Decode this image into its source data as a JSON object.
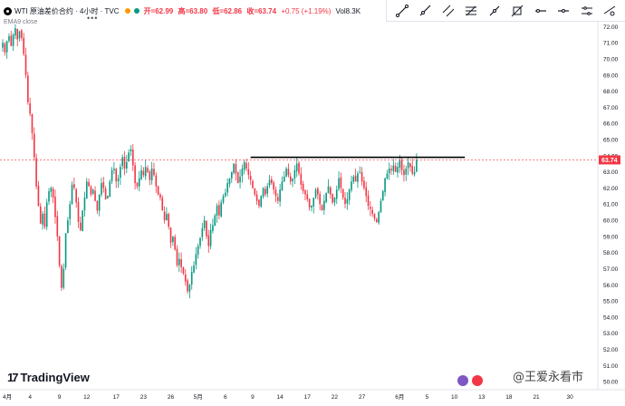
{
  "header": {
    "title": "WTI 原油差价合约 · 4小时 · TVC",
    "ema_label": "EMA9 close",
    "ohlc": {
      "open_label": "开=",
      "open": "62.99",
      "high_label": "高=",
      "high": "63.80",
      "low_label": "低=",
      "low": "62.86",
      "close_label": "收=",
      "close": "63.74",
      "change": "+0.75 (+1.19%)"
    },
    "volume_label": "Vol",
    "volume": "8.3K",
    "status_colors": [
      "#ff9800",
      "#089981"
    ]
  },
  "toolbar": {
    "tools": [
      "trend-line-tool",
      "ray-tool",
      "parallel-channel-tool",
      "fib-tool",
      "line-tool",
      "extended-line-tool",
      "horizontal-ray-tool",
      "horizontal-line-tool",
      "price-range-tool",
      "more-tools"
    ]
  },
  "branding": {
    "tradingview": "TradingView",
    "watermark": "@王爱永看市"
  },
  "colors": {
    "up": "#089981",
    "down": "#f23645",
    "resistance": "#000000",
    "price_tag": "#f23645"
  },
  "chart_data": {
    "type": "candlestick",
    "y_ticks": [
      "72.00",
      "71.00",
      "70.00",
      "69.00",
      "68.00",
      "67.00",
      "66.00",
      "65.00",
      "64.00",
      "63.00",
      "62.00",
      "61.00",
      "60.00",
      "59.00",
      "58.00",
      "57.00",
      "56.00",
      "55.00",
      "54.00",
      "53.00",
      "52.00",
      "51.00",
      "50.00"
    ],
    "ylim": [
      49.5,
      72.3
    ],
    "x_ticks": [
      {
        "label": "4月",
        "pos": 0
      },
      {
        "label": "4",
        "pos": 13
      },
      {
        "label": "9",
        "pos": 27
      },
      {
        "label": "12",
        "pos": 40
      },
      {
        "label": "17",
        "pos": 54
      },
      {
        "label": "23",
        "pos": 67
      },
      {
        "label": "26",
        "pos": 80
      },
      {
        "label": "5月",
        "pos": 93
      },
      {
        "label": "6",
        "pos": 106
      },
      {
        "label": "9",
        "pos": 119
      },
      {
        "label": "14",
        "pos": 132
      },
      {
        "label": "17",
        "pos": 145
      },
      {
        "label": "22",
        "pos": 158
      },
      {
        "label": "27",
        "pos": 171
      },
      {
        "label": "6月",
        "pos": 189
      },
      {
        "label": "5",
        "pos": 202
      },
      {
        "label": "10",
        "pos": 215
      },
      {
        "label": "13",
        "pos": 228
      },
      {
        "label": "18",
        "pos": 241
      },
      {
        "label": "21",
        "pos": 254
      },
      {
        "label": "30",
        "pos": 270
      }
    ],
    "last_price": "63.74",
    "last_price_value": 63.74,
    "resistance_level": 63.9,
    "resistance_range": [
      118,
      220
    ],
    "closes": [
      71.0,
      70.4,
      71.1,
      71.4,
      70.8,
      71.5,
      71.9,
      71.2,
      71.7,
      71.3,
      70.3,
      69.0,
      67.3,
      66.6,
      65.4,
      63.9,
      62.1,
      60.9,
      59.8,
      60.4,
      59.6,
      61.1,
      61.8,
      62.0,
      61.4,
      60.2,
      59.0,
      57.2,
      55.8,
      57.0,
      59.2,
      60.0,
      61.0,
      62.2,
      62.0,
      61.1,
      59.9,
      59.4,
      60.6,
      61.4,
      62.4,
      62.1,
      61.6,
      61.9,
      61.2,
      60.6,
      61.6,
      62.3,
      62.0,
      61.3,
      61.5,
      62.4,
      63.1,
      63.2,
      62.4,
      62.6,
      63.3,
      63.9,
      63.2,
      63.6,
      64.2,
      64.4,
      63.4,
      62.3,
      62.1,
      62.6,
      63.1,
      62.8,
      63.3,
      63.0,
      62.5,
      63.2,
      62.8,
      62.1,
      61.6,
      61.4,
      60.6,
      60.0,
      60.4,
      59.6,
      58.6,
      59.0,
      58.2,
      57.2,
      57.6,
      57.1,
      56.7,
      56.2,
      55.6,
      56.0,
      56.8,
      57.2,
      57.9,
      58.4,
      58.9,
      59.5,
      60.0,
      59.0,
      58.4,
      59.4,
      59.7,
      60.3,
      60.9,
      60.3,
      61.1,
      61.5,
      61.7,
      62.3,
      62.6,
      63.0,
      63.5,
      62.9,
      62.3,
      62.7,
      63.2,
      63.6,
      63.2,
      62.8,
      62.5,
      62.0,
      61.6,
      61.2,
      60.9,
      61.5,
      62.0,
      61.6,
      62.1,
      62.5,
      62.3,
      61.9,
      61.5,
      61.2,
      61.9,
      62.4,
      62.7,
      63.2,
      62.8,
      62.4,
      62.6,
      63.1,
      63.5,
      62.9,
      62.2,
      61.8,
      61.6,
      61.3,
      60.8,
      60.9,
      61.4,
      61.9,
      61.6,
      61.0,
      60.6,
      61.2,
      61.7,
      62.1,
      61.6,
      61.1,
      61.4,
      61.9,
      62.6,
      62.0,
      61.4,
      61.0,
      61.3,
      61.9,
      62.4,
      62.7,
      62.4,
      62.9,
      63.0,
      62.4,
      62.0,
      61.5,
      60.9,
      60.7,
      60.4,
      60.1,
      59.9,
      60.5,
      61.2,
      61.8,
      62.6,
      62.9,
      63.2,
      63.1,
      63.4,
      63.0,
      63.3,
      63.7,
      63.1,
      62.8,
      63.2,
      63.6,
      63.3,
      62.9,
      62.99,
      63.74
    ]
  }
}
